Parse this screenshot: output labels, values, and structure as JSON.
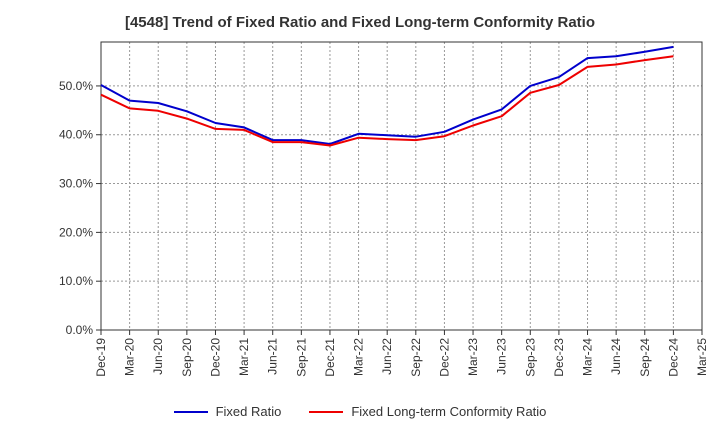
{
  "title": "[4548]  Trend of Fixed Ratio and Fixed Long-term Conformity Ratio",
  "chart_data": {
    "type": "line",
    "title": "[4548]  Trend of Fixed Ratio and Fixed Long-term Conformity Ratio",
    "xlabel": "",
    "ylabel": "",
    "categories": [
      "Dec-19",
      "Mar-20",
      "Jun-20",
      "Sep-20",
      "Dec-20",
      "Mar-21",
      "Jun-21",
      "Sep-21",
      "Dec-21",
      "Mar-22",
      "Jun-22",
      "Sep-22",
      "Dec-22",
      "Mar-23",
      "Jun-23",
      "Sep-23",
      "Dec-23",
      "Mar-24",
      "Jun-24",
      "Sep-24",
      "Dec-24",
      "Mar-25"
    ],
    "y_ticks": [
      "0.0%",
      "10.0%",
      "20.0%",
      "30.0%",
      "40.0%",
      "50.0%"
    ],
    "ylim": [
      0,
      59
    ],
    "grid": true,
    "legend_position": "bottom",
    "series": [
      {
        "name": "Fixed Ratio",
        "color": "#0000cc",
        "values": [
          50.2,
          47.0,
          46.5,
          44.8,
          42.4,
          41.5,
          38.9,
          38.9,
          38.1,
          40.2,
          39.9,
          39.6,
          40.6,
          43.1,
          45.2,
          50.0,
          51.8,
          55.7,
          56.1,
          57.0,
          58.0,
          null
        ]
      },
      {
        "name": "Fixed Long-term Conformity Ratio",
        "color": "#ee0000",
        "values": [
          48.2,
          45.4,
          44.9,
          43.3,
          41.2,
          41.0,
          38.5,
          38.5,
          37.8,
          39.4,
          39.1,
          38.9,
          39.7,
          41.9,
          43.8,
          48.6,
          50.2,
          53.9,
          54.4,
          55.3,
          56.1,
          null
        ]
      }
    ]
  }
}
